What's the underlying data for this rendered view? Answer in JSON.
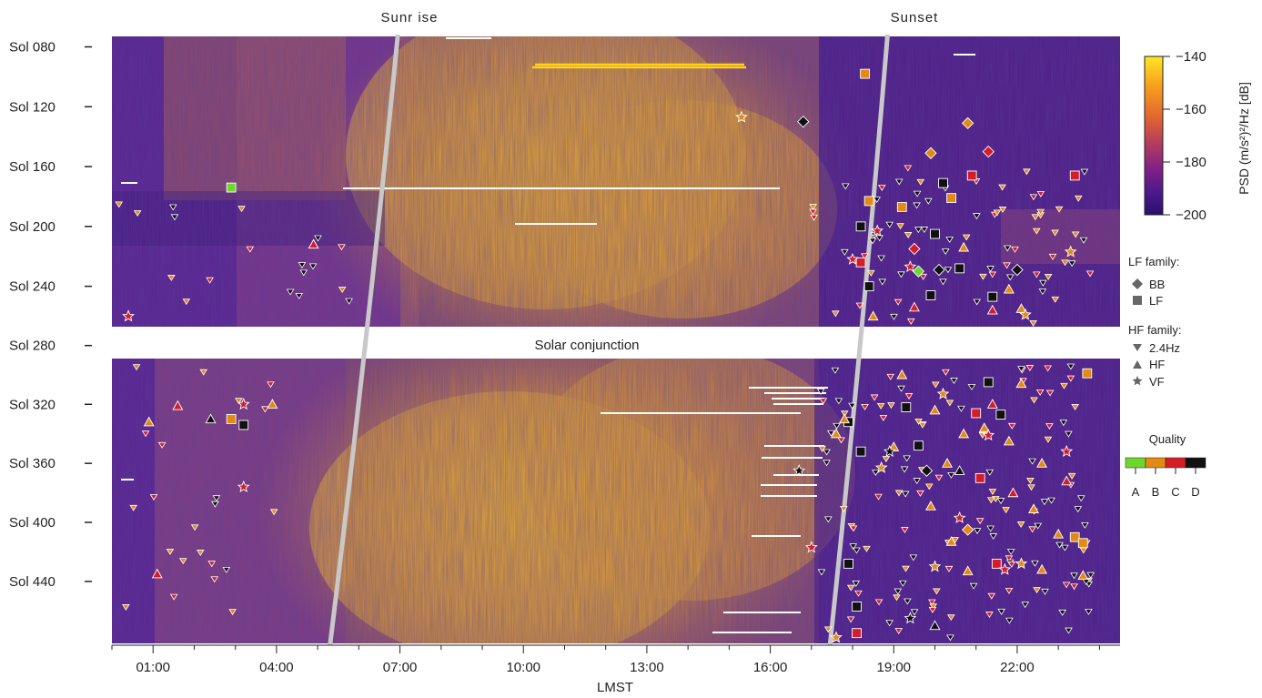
{
  "chart_data": {
    "type": "heatmap",
    "xlabel": "LMST",
    "x_ticks": [
      "01:00",
      "04:00",
      "07:00",
      "10:00",
      "13:00",
      "16:00",
      "19:00",
      "22:00"
    ],
    "x_tick_hours": [
      1,
      4,
      7,
      10,
      13,
      16,
      19,
      22
    ],
    "xlim_hours": [
      0,
      24.5
    ],
    "y_ticks": [
      "Sol 080",
      "Sol 120",
      "Sol 160",
      "Sol 200",
      "Sol 240",
      "Sol 280",
      "Sol 320",
      "Sol 360",
      "Sol 400",
      "Sol 440"
    ],
    "y_tick_sols": [
      80,
      120,
      160,
      200,
      240,
      280,
      320,
      360,
      400,
      440
    ],
    "ylim_sols": [
      73,
      482
    ],
    "gap_sols": [
      267,
      289
    ],
    "gap_label": "Solar conjunction",
    "top_labels": [
      "Sunr ise",
      "Sunset"
    ],
    "sunrise_line": {
      "sols": [
        73,
        482
      ],
      "hours": [
        6.95,
        5.3
      ]
    },
    "sunset_line": {
      "sols": [
        73,
        482
      ],
      "hours": [
        18.85,
        17.45
      ]
    },
    "colorbar": {
      "label": "PSD   (m/s²)²/Hz  [dB]",
      "range": [
        -200,
        -140
      ],
      "ticks": [
        "−140",
        "−160",
        "−180",
        "−200"
      ],
      "tick_values": [
        -140,
        -160,
        -180,
        -200
      ],
      "colors": [
        "#fde725",
        "#f8a11c",
        "#e2672f",
        "#b33c5f",
        "#7d1f86",
        "#481a8a",
        "#2b0f6c"
      ]
    },
    "legend": {
      "lf_title": "LF family:",
      "lf_items": [
        {
          "label": "BB",
          "marker": "diamond"
        },
        {
          "label": "LF",
          "marker": "square"
        }
      ],
      "hf_title": "HF family:",
      "hf_items": [
        {
          "label": "2.4Hz",
          "marker": "triangle-down"
        },
        {
          "label": "HF",
          "marker": "triangle-up"
        },
        {
          "label": "VF",
          "marker": "star"
        }
      ],
      "quality_title": "Quality",
      "quality_labels": [
        "A",
        "B",
        "C",
        "D"
      ],
      "quality_colors": [
        "#6ed72e",
        "#e38a12",
        "#d61d27",
        "#111111"
      ]
    },
    "events": [
      {
        "h": 16.8,
        "s": 130,
        "m": "diamond",
        "q": "D"
      },
      {
        "h": 20.8,
        "s": 131,
        "m": "diamond",
        "q": "B"
      },
      {
        "h": 19.9,
        "s": 151,
        "m": "diamond",
        "q": "B"
      },
      {
        "h": 21.3,
        "s": 150,
        "m": "diamond",
        "q": "C"
      },
      {
        "h": 19.6,
        "s": 230,
        "m": "diamond",
        "q": "A"
      },
      {
        "h": 20.1,
        "s": 229,
        "m": "diamond",
        "q": "D"
      },
      {
        "h": 22.0,
        "s": 229,
        "m": "diamond",
        "q": "D"
      },
      {
        "h": 19.5,
        "s": 215,
        "m": "diamond",
        "q": "C"
      },
      {
        "h": 19.8,
        "s": 365,
        "m": "diamond",
        "q": "D"
      },
      {
        "h": 20.8,
        "s": 405,
        "m": "diamond",
        "q": "B"
      },
      {
        "h": 18.3,
        "s": 98,
        "m": "square",
        "q": "B"
      },
      {
        "h": 2.9,
        "s": 174,
        "m": "square",
        "q": "A"
      },
      {
        "h": 18.4,
        "s": 183,
        "m": "square",
        "q": "B"
      },
      {
        "h": 19.2,
        "s": 187,
        "m": "square",
        "q": "B"
      },
      {
        "h": 20.4,
        "s": 181,
        "m": "square",
        "q": "B"
      },
      {
        "h": 20.9,
        "s": 166,
        "m": "square",
        "q": "C"
      },
      {
        "h": 20.2,
        "s": 171,
        "m": "square",
        "q": "D"
      },
      {
        "h": 23.4,
        "s": 166,
        "m": "square",
        "q": "C"
      },
      {
        "h": 18.2,
        "s": 200,
        "m": "square",
        "q": "D"
      },
      {
        "h": 20.0,
        "s": 205,
        "m": "square",
        "q": "D"
      },
      {
        "h": 18.2,
        "s": 224,
        "m": "square",
        "q": "C"
      },
      {
        "h": 20.6,
        "s": 228,
        "m": "square",
        "q": "D"
      },
      {
        "h": 18.4,
        "s": 240,
        "m": "square",
        "q": "D"
      },
      {
        "h": 19.9,
        "s": 246,
        "m": "square",
        "q": "D"
      },
      {
        "h": 21.4,
        "s": 247,
        "m": "square",
        "q": "D"
      },
      {
        "h": 2.9,
        "s": 330,
        "m": "square",
        "q": "B"
      },
      {
        "h": 3.2,
        "s": 334,
        "m": "square",
        "q": "D"
      },
      {
        "h": 17.9,
        "s": 332,
        "m": "square",
        "q": "D"
      },
      {
        "h": 19.3,
        "s": 322,
        "m": "square",
        "q": "D"
      },
      {
        "h": 21.0,
        "s": 326,
        "m": "square",
        "q": "C"
      },
      {
        "h": 21.6,
        "s": 327,
        "m": "square",
        "q": "D"
      },
      {
        "h": 18.2,
        "s": 352,
        "m": "square",
        "q": "D"
      },
      {
        "h": 21.1,
        "s": 370,
        "m": "square",
        "q": "C"
      },
      {
        "h": 23.7,
        "s": 299,
        "m": "square",
        "q": "B"
      },
      {
        "h": 21.3,
        "s": 305,
        "m": "square",
        "q": "D"
      },
      {
        "h": 18.1,
        "s": 457,
        "m": "square",
        "q": "D"
      },
      {
        "h": 23.4,
        "s": 410,
        "m": "square",
        "q": "B"
      },
      {
        "h": 23.6,
        "s": 414,
        "m": "square",
        "q": "B"
      },
      {
        "h": 21.5,
        "s": 428,
        "m": "square",
        "q": "C"
      },
      {
        "h": 18.1,
        "s": 475,
        "m": "square",
        "q": "C"
      },
      {
        "h": 19.6,
        "s": 348,
        "m": "square",
        "q": "D"
      },
      {
        "h": 17.9,
        "s": 428,
        "m": "square",
        "q": "D"
      },
      {
        "h": 4.9,
        "s": 212,
        "m": "triangle-up",
        "q": "C"
      },
      {
        "h": 3.9,
        "s": 320,
        "m": "triangle-up",
        "q": "B"
      },
      {
        "h": 1.6,
        "s": 321,
        "m": "triangle-up",
        "q": "C"
      },
      {
        "h": 0.9,
        "s": 332,
        "m": "triangle-up",
        "q": "B"
      },
      {
        "h": 2.4,
        "s": 330,
        "m": "triangle-up",
        "q": "D"
      },
      {
        "h": 1.1,
        "s": 435,
        "m": "triangle-up",
        "q": "C"
      },
      {
        "h": 17.8,
        "s": 330,
        "m": "triangle-up",
        "q": "B"
      },
      {
        "h": 17.6,
        "s": 340,
        "m": "triangle-up",
        "q": "B"
      },
      {
        "h": 20.0,
        "s": 324,
        "m": "triangle-up",
        "q": "B"
      },
      {
        "h": 20.7,
        "s": 340,
        "m": "triangle-up",
        "q": "B"
      },
      {
        "h": 21.2,
        "s": 336,
        "m": "triangle-up",
        "q": "B"
      },
      {
        "h": 21.8,
        "s": 345,
        "m": "triangle-up",
        "q": "B"
      },
      {
        "h": 20.3,
        "s": 360,
        "m": "triangle-up",
        "q": "B"
      },
      {
        "h": 19.0,
        "s": 349,
        "m": "triangle-up",
        "q": "B"
      },
      {
        "h": 22.6,
        "s": 360,
        "m": "triangle-up",
        "q": "B"
      },
      {
        "h": 21.9,
        "s": 380,
        "m": "triangle-up",
        "q": "C"
      },
      {
        "h": 20.4,
        "s": 413,
        "m": "triangle-up",
        "q": "B"
      },
      {
        "h": 20.6,
        "s": 365,
        "m": "triangle-up",
        "q": "D"
      },
      {
        "h": 22.1,
        "s": 306,
        "m": "triangle-up",
        "q": "B"
      },
      {
        "h": 19.2,
        "s": 300,
        "m": "triangle-up",
        "q": "B"
      },
      {
        "h": 22.6,
        "s": 432,
        "m": "triangle-up",
        "q": "B"
      },
      {
        "h": 20.0,
        "s": 470,
        "m": "triangle-up",
        "q": "D"
      },
      {
        "h": 20.8,
        "s": 433,
        "m": "triangle-up",
        "q": "B"
      },
      {
        "h": 21.4,
        "s": 320,
        "m": "triangle-up",
        "q": "C"
      },
      {
        "h": 22.4,
        "s": 391,
        "m": "triangle-up",
        "q": "B"
      },
      {
        "h": 23.0,
        "s": 408,
        "m": "triangle-up",
        "q": "B"
      },
      {
        "h": 19.5,
        "s": 254,
        "m": "triangle-up",
        "q": "C"
      },
      {
        "h": 21.8,
        "s": 242,
        "m": "triangle-up",
        "q": "B"
      },
      {
        "h": 22.1,
        "s": 255,
        "m": "triangle-up",
        "q": "B"
      },
      {
        "h": 23.2,
        "s": 372,
        "m": "triangle-up",
        "q": "C"
      },
      {
        "h": 23.6,
        "s": 436,
        "m": "triangle-up",
        "q": "B"
      },
      {
        "h": 18.5,
        "s": 260,
        "m": "triangle-up",
        "q": "B"
      },
      {
        "h": 20.7,
        "s": 214,
        "m": "triangle-up",
        "q": "B"
      },
      {
        "h": 21.4,
        "s": 256,
        "m": "triangle-up",
        "q": "C"
      },
      {
        "h": 19.9,
        "s": 389,
        "m": "triangle-up",
        "q": "B"
      },
      {
        "h": 0.4,
        "s": 260,
        "m": "star",
        "q": "C"
      },
      {
        "h": 15.3,
        "s": 127,
        "m": "star",
        "q": "B"
      },
      {
        "h": 3.2,
        "s": 320,
        "m": "star",
        "q": "C"
      },
      {
        "h": 3.2,
        "s": 376,
        "m": "star",
        "q": "C"
      },
      {
        "h": 18.0,
        "s": 222,
        "m": "star",
        "q": "C"
      },
      {
        "h": 18.6,
        "s": 203,
        "m": "star",
        "q": "C"
      },
      {
        "h": 23.3,
        "s": 217,
        "m": "star",
        "q": "B"
      },
      {
        "h": 22.2,
        "s": 259,
        "m": "star",
        "q": "B"
      },
      {
        "h": 19.4,
        "s": 465,
        "m": "star",
        "q": "D"
      },
      {
        "h": 17.6,
        "s": 478,
        "m": "star",
        "q": "B"
      },
      {
        "h": 20.0,
        "s": 430,
        "m": "star",
        "q": "B"
      },
      {
        "h": 22.1,
        "s": 428,
        "m": "star",
        "q": "B"
      },
      {
        "h": 18.9,
        "s": 352,
        "m": "star",
        "q": "D"
      },
      {
        "h": 21.3,
        "s": 341,
        "m": "star",
        "q": "C"
      },
      {
        "h": 16.7,
        "s": 365,
        "m": "star",
        "q": "D"
      },
      {
        "h": 20.6,
        "s": 397,
        "m": "star",
        "q": "C"
      },
      {
        "h": 23.2,
        "s": 352,
        "m": "star",
        "q": "C"
      },
      {
        "h": 19.4,
        "s": 227,
        "m": "star",
        "q": "C"
      },
      {
        "h": 17.0,
        "s": 417,
        "m": "star",
        "q": "C"
      },
      {
        "h": 21.7,
        "s": 432,
        "m": "star",
        "q": "C"
      },
      {
        "h": 20.2,
        "s": 313,
        "m": "star",
        "q": "B"
      },
      {
        "h": 18.7,
        "s": 363,
        "m": "star",
        "q": "B"
      }
    ],
    "small_events_2p4hz": {
      "description_count": 260,
      "clusters": [
        {
          "h_range": [
            17.0,
            23.8
          ],
          "s_range": [
            160,
            265
          ],
          "n": 75
        },
        {
          "h_range": [
            17.2,
            23.8
          ],
          "s_range": [
            292,
            480
          ],
          "n": 145
        },
        {
          "h_range": [
            0.1,
            6.3
          ],
          "s_range": [
            185,
            262
          ],
          "n": 18
        },
        {
          "h_range": [
            0.1,
            4.2
          ],
          "s_range": [
            292,
            480
          ],
          "n": 22
        }
      ]
    }
  }
}
